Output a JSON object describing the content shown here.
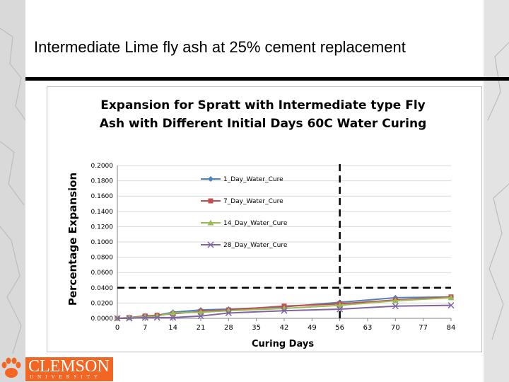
{
  "slide": {
    "title": "Intermediate Lime fly ash at 25% cement replacement"
  },
  "logo": {
    "name": "CLEMSON",
    "subtitle": "UNIVERSITY",
    "icon": "tiger-paw-icon",
    "color": "#f26522"
  },
  "chart_data": {
    "type": "line",
    "title_line1": "Expansion for  Spratt with Intermediate type Fly",
    "title_line2": "Ash with Different  Initial Days 60C Water Curing",
    "xlabel": "Curing Days",
    "ylabel": "Percentage Expansion",
    "xlim": [
      0,
      84
    ],
    "ylim": [
      0,
      0.2
    ],
    "x_ticks": [
      0,
      7,
      14,
      21,
      28,
      35,
      42,
      49,
      56,
      63,
      70,
      77,
      84
    ],
    "y_ticks": [
      "0.0000",
      "0.0200",
      "0.0400",
      "0.0600",
      "0.0800",
      "0.1000",
      "0.1200",
      "0.1400",
      "0.1600",
      "0.1800",
      "0.2000"
    ],
    "legend_position": "top-left",
    "grid": "horizontal",
    "threshold_y": 0.04,
    "threshold_x": 56,
    "series": [
      {
        "name": "1_Day_Water_Cure",
        "color": "#4f81bd",
        "marker": "diamond",
        "x": [
          0,
          3,
          7,
          10,
          14,
          21,
          28,
          42,
          56,
          70,
          84
        ],
        "y": [
          0,
          0.001,
          0.003,
          0.004,
          0.008,
          0.011,
          0.012,
          0.015,
          0.021,
          0.027,
          0.028
        ]
      },
      {
        "name": "7_Day_Water_Cure",
        "color": "#c0504d",
        "marker": "square",
        "x": [
          0,
          3,
          7,
          10,
          14,
          21,
          28,
          42,
          56,
          70,
          84
        ],
        "y": [
          0,
          0.001,
          0.003,
          0.004,
          0.006,
          0.009,
          0.011,
          0.016,
          0.019,
          0.024,
          0.028
        ]
      },
      {
        "name": "14_Day_Water_Cure",
        "color": "#9bbb59",
        "marker": "triangle",
        "x": [
          0,
          3,
          7,
          10,
          14,
          21,
          28,
          42,
          56,
          70,
          84
        ],
        "y": [
          0,
          0.001,
          0.002,
          0.003,
          0.007,
          0.008,
          0.01,
          0.013,
          0.017,
          0.023,
          0.027
        ]
      },
      {
        "name": "28_Day_Water_Cure",
        "color": "#8064a2",
        "marker": "x",
        "x": [
          0,
          3,
          7,
          10,
          14,
          21,
          28,
          42,
          56,
          70,
          84
        ],
        "y": [
          0,
          0,
          0.001,
          0.001,
          0.001,
          0.003,
          0.007,
          0.01,
          0.012,
          0.016,
          0.017
        ]
      }
    ]
  }
}
